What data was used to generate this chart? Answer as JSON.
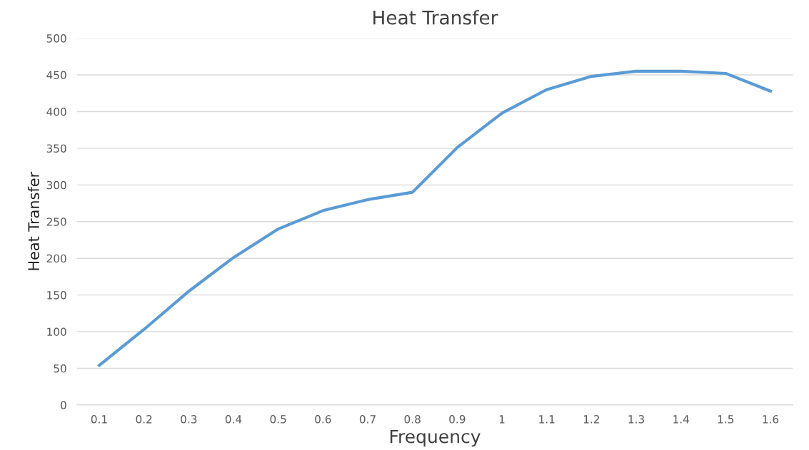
{
  "chart_data": {
    "type": "line",
    "title": "Heat Transfer",
    "xlabel": "Frequency",
    "ylabel": "Heat Transfer",
    "categories": [
      "0.1",
      "0.2",
      "0.3",
      "0.4",
      "0.5",
      "0.6",
      "0.7",
      "0.8",
      "0.9",
      "1",
      "1.1",
      "1.2",
      "1.3",
      "1.4",
      "1.5",
      "1.6"
    ],
    "series": [
      {
        "color": "#5b9bd5",
        "values": [
          54,
          103,
          155,
          201,
          240,
          265,
          280,
          290,
          351,
          398,
          430,
          448,
          455,
          455,
          452,
          428
        ]
      }
    ],
    "ylim": [
      0,
      500
    ],
    "yticks": [
      0,
      50,
      100,
      150,
      200,
      250,
      300,
      350,
      400,
      450,
      500
    ],
    "grid": "y",
    "legend": false,
    "marker": "none",
    "line_style": "solid"
  }
}
